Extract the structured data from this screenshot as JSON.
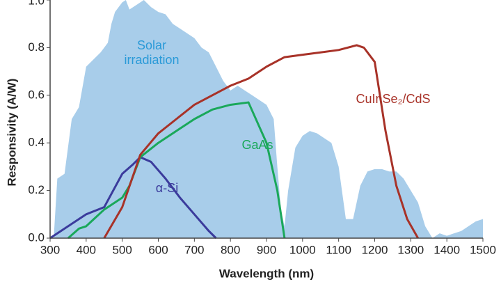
{
  "chart_data": {
    "type": "line",
    "xlabel": "Wavelength (nm)",
    "ylabel": "Responsivity (A/W)",
    "xlim": [
      300,
      1500
    ],
    "xticks": [
      300,
      400,
      500,
      600,
      700,
      800,
      900,
      1000,
      1100,
      1200,
      1300,
      1400,
      1500
    ],
    "ylim": [
      0,
      1.0
    ],
    "yticks": [
      {
        "value": 0,
        "label": "0.0"
      },
      0.2,
      0.4,
      0.6,
      0.8,
      {
        "value": 1.0,
        "label": "1.0"
      }
    ],
    "grid": false,
    "series": [
      {
        "name": "Solar irradiation",
        "style": "area",
        "color": "#a8cdea",
        "label_color": "#2a9ad8",
        "x": [
          300,
          310,
          320,
          340,
          360,
          380,
          400,
          420,
          440,
          460,
          470,
          480,
          490,
          500,
          510,
          520,
          540,
          560,
          580,
          600,
          620,
          640,
          660,
          680,
          700,
          720,
          740,
          760,
          780,
          800,
          820,
          840,
          860,
          880,
          900,
          920,
          930,
          940,
          950,
          960,
          980,
          1000,
          1020,
          1040,
          1060,
          1080,
          1100,
          1120,
          1140,
          1160,
          1180,
          1200,
          1220,
          1240,
          1260,
          1280,
          1300,
          1320,
          1340,
          1360,
          1380,
          1400,
          1420,
          1440,
          1460,
          1480,
          1500
        ],
        "values": [
          0,
          0,
          0.25,
          0.27,
          0.5,
          0.55,
          0.72,
          0.75,
          0.78,
          0.82,
          0.9,
          0.95,
          0.97,
          0.99,
          1.0,
          0.96,
          0.98,
          1.0,
          0.97,
          0.95,
          0.94,
          0.9,
          0.88,
          0.86,
          0.84,
          0.8,
          0.78,
          0.72,
          0.66,
          0.62,
          0.64,
          0.62,
          0.6,
          0.58,
          0.56,
          0.5,
          0.3,
          0.12,
          0.05,
          0.2,
          0.38,
          0.43,
          0.45,
          0.44,
          0.42,
          0.4,
          0.3,
          0.08,
          0.08,
          0.22,
          0.28,
          0.29,
          0.29,
          0.28,
          0.28,
          0.25,
          0.2,
          0.15,
          0.05,
          0,
          0.02,
          0.01,
          0.02,
          0.03,
          0.05,
          0.07,
          0.08
        ]
      },
      {
        "name": "α-Si",
        "style": "line",
        "color": "#3b3b9c",
        "label_color": "#3b3b9c",
        "x": [
          300,
          350,
          400,
          450,
          500,
          530,
          550,
          580,
          620,
          660,
          700,
          740,
          760
        ],
        "values": [
          0,
          0.05,
          0.1,
          0.13,
          0.27,
          0.31,
          0.34,
          0.32,
          0.25,
          0.17,
          0.1,
          0.03,
          0
        ]
      },
      {
        "name": "GaAs",
        "style": "line",
        "color": "#1aa85a",
        "label_color": "#1aa85a",
        "x": [
          350,
          380,
          400,
          450,
          500,
          520,
          550,
          600,
          700,
          750,
          800,
          850,
          900,
          930,
          950
        ],
        "values": [
          0,
          0.04,
          0.05,
          0.12,
          0.17,
          0.22,
          0.34,
          0.4,
          0.5,
          0.54,
          0.56,
          0.57,
          0.4,
          0.2,
          0
        ]
      },
      {
        "name": "CuInSe₂/CdS",
        "style": "line",
        "color": "#a83228",
        "label_color": "#a83228",
        "x": [
          450,
          500,
          550,
          600,
          650,
          700,
          800,
          850,
          900,
          950,
          1000,
          1050,
          1100,
          1150,
          1170,
          1200,
          1230,
          1260,
          1290,
          1320
        ],
        "values": [
          0,
          0.13,
          0.35,
          0.44,
          0.5,
          0.56,
          0.64,
          0.67,
          0.72,
          0.76,
          0.77,
          0.78,
          0.79,
          0.81,
          0.8,
          0.74,
          0.45,
          0.22,
          0.08,
          0
        ]
      }
    ]
  }
}
